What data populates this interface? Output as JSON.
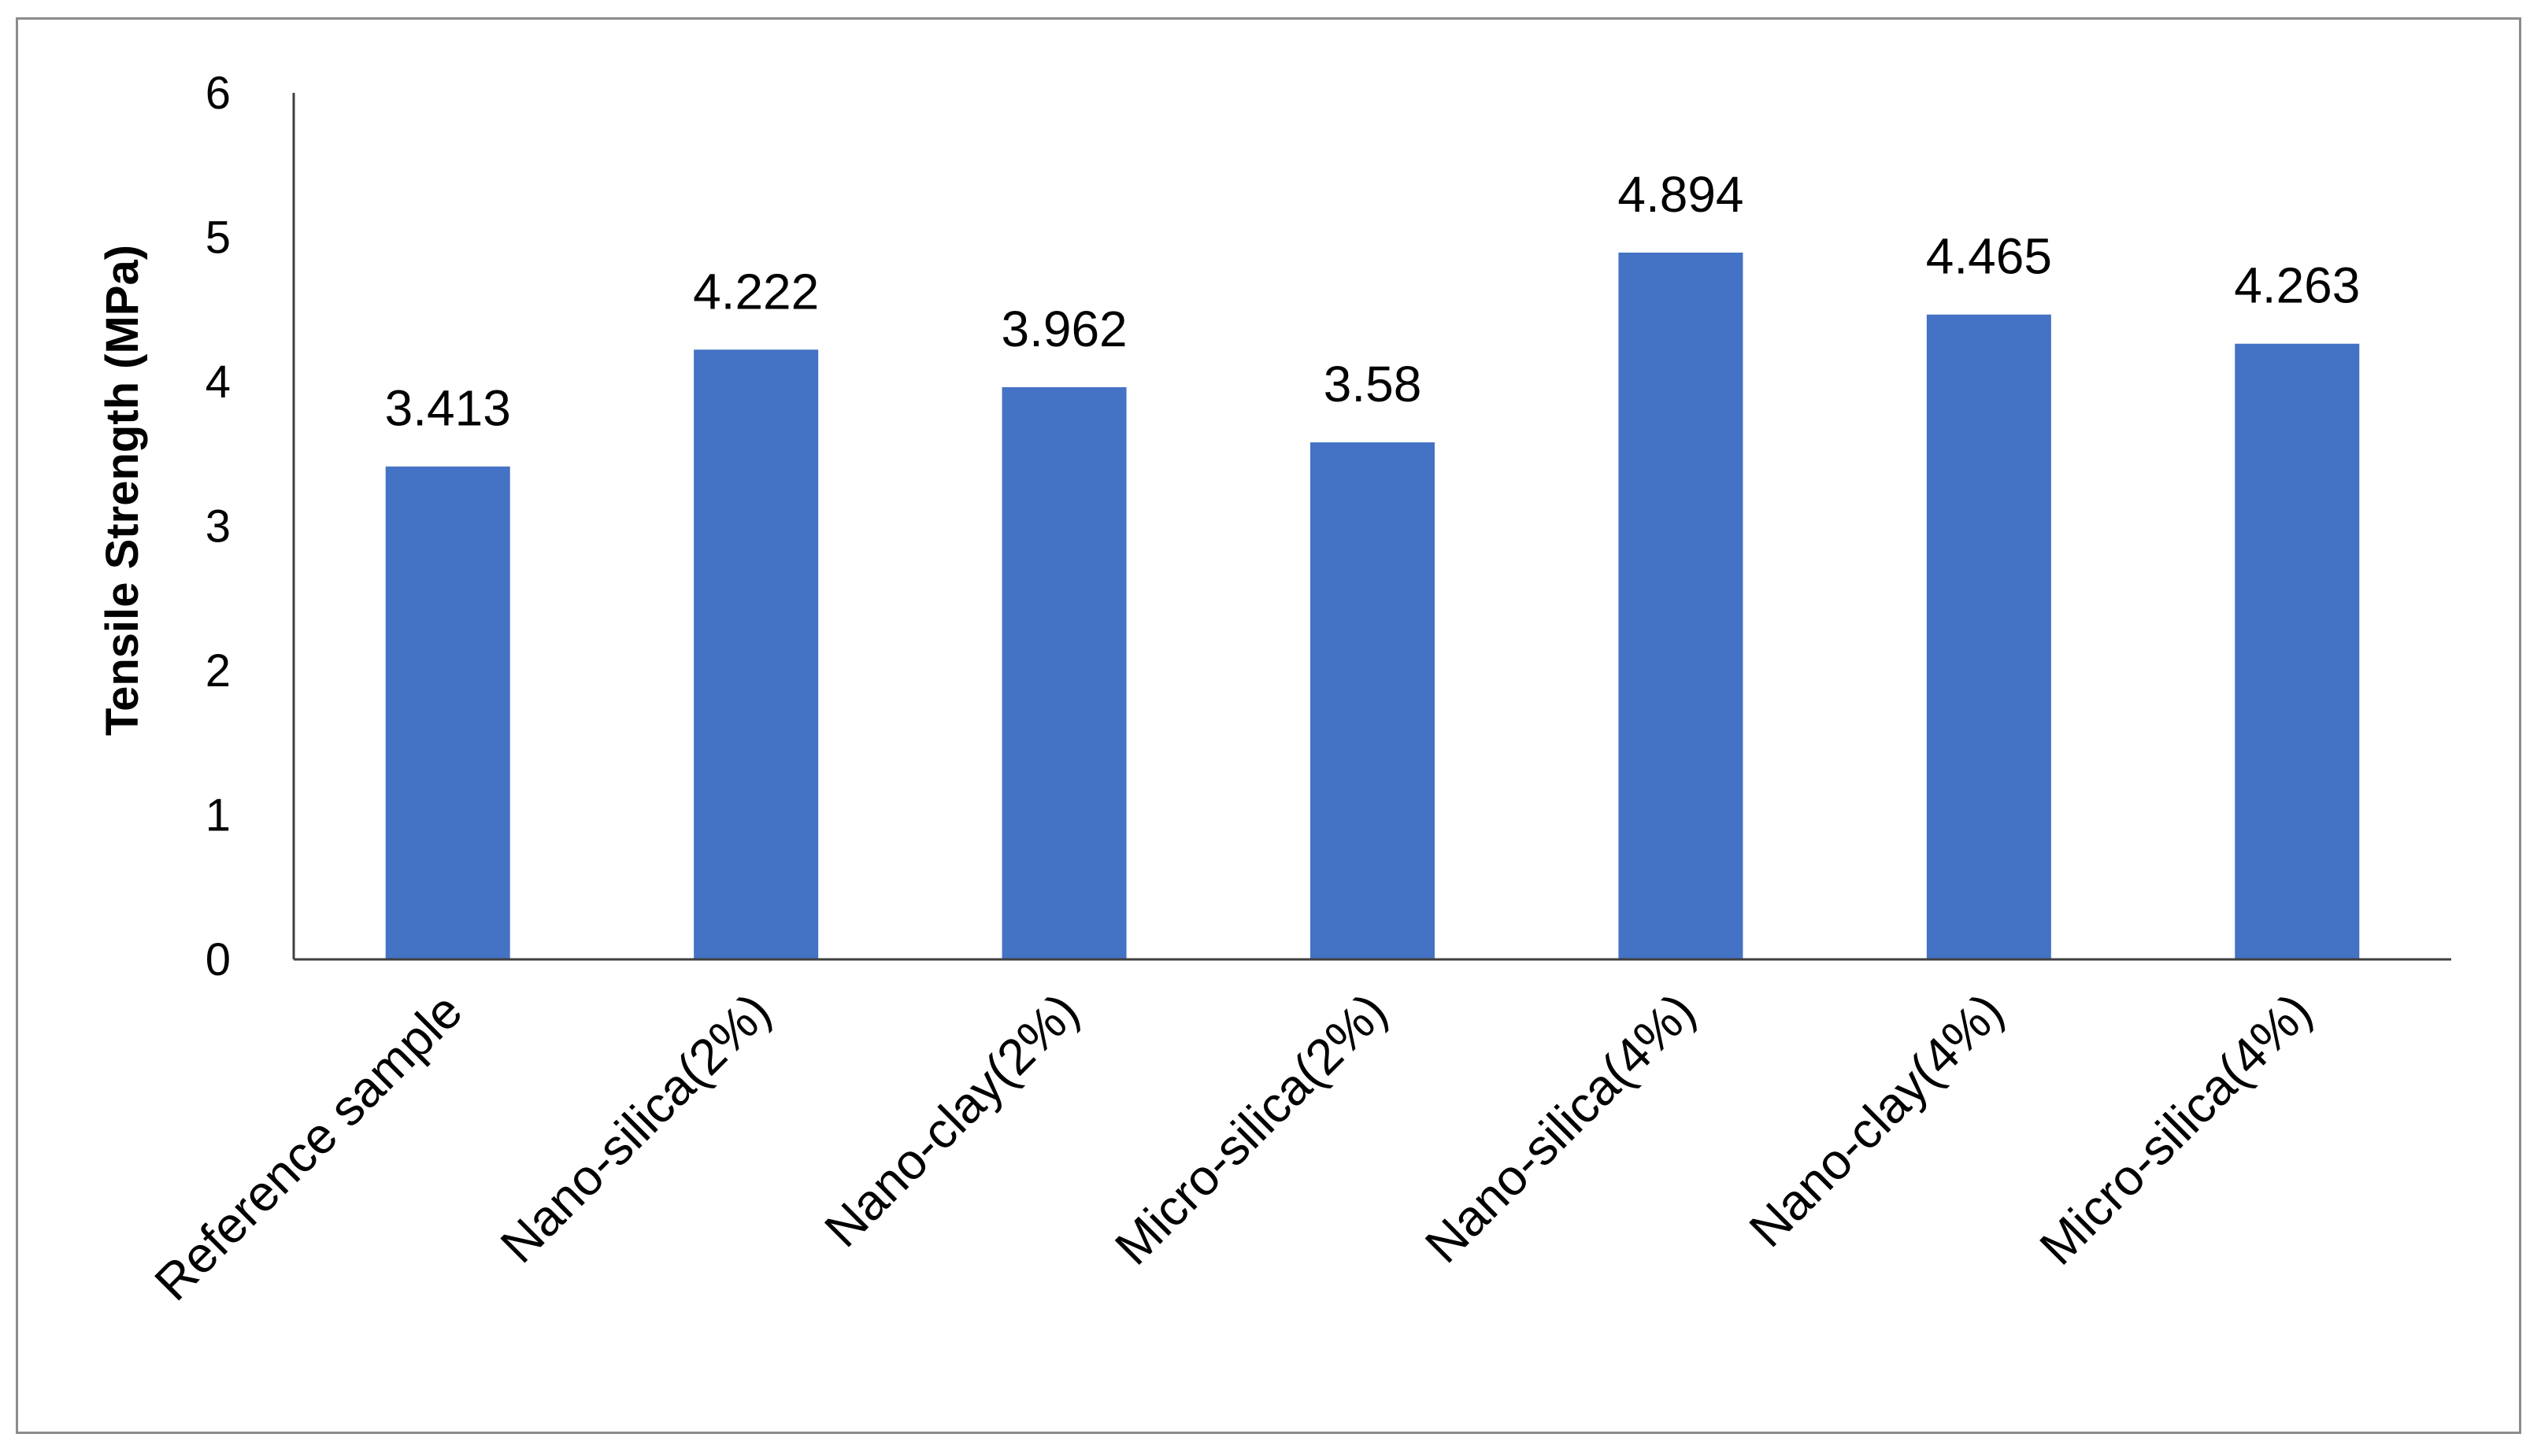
{
  "chart_data": {
    "type": "bar",
    "categories": [
      "Reference sample",
      "Nano-silica(2%)",
      "Nano-clay(2%)",
      "Micro-silica(2%)",
      "Nano-silica(4%)",
      "Nano-clay(4%)",
      "Micro-silica(4%)"
    ],
    "values": [
      3.413,
      4.222,
      3.962,
      3.58,
      4.894,
      4.465,
      4.263
    ],
    "data_labels": [
      "3.413",
      "4.222",
      "3.962",
      "3.58",
      "4.894",
      "4.465",
      "4.263"
    ],
    "title": "",
    "xlabel": "",
    "ylabel": "Tensile Strength (MPa)",
    "ylim": [
      0,
      6
    ],
    "yticks": [
      "0",
      "1",
      "2",
      "3",
      "4",
      "5",
      "6"
    ],
    "grid": false,
    "legend": "none",
    "bar_color": "#4472C4"
  }
}
